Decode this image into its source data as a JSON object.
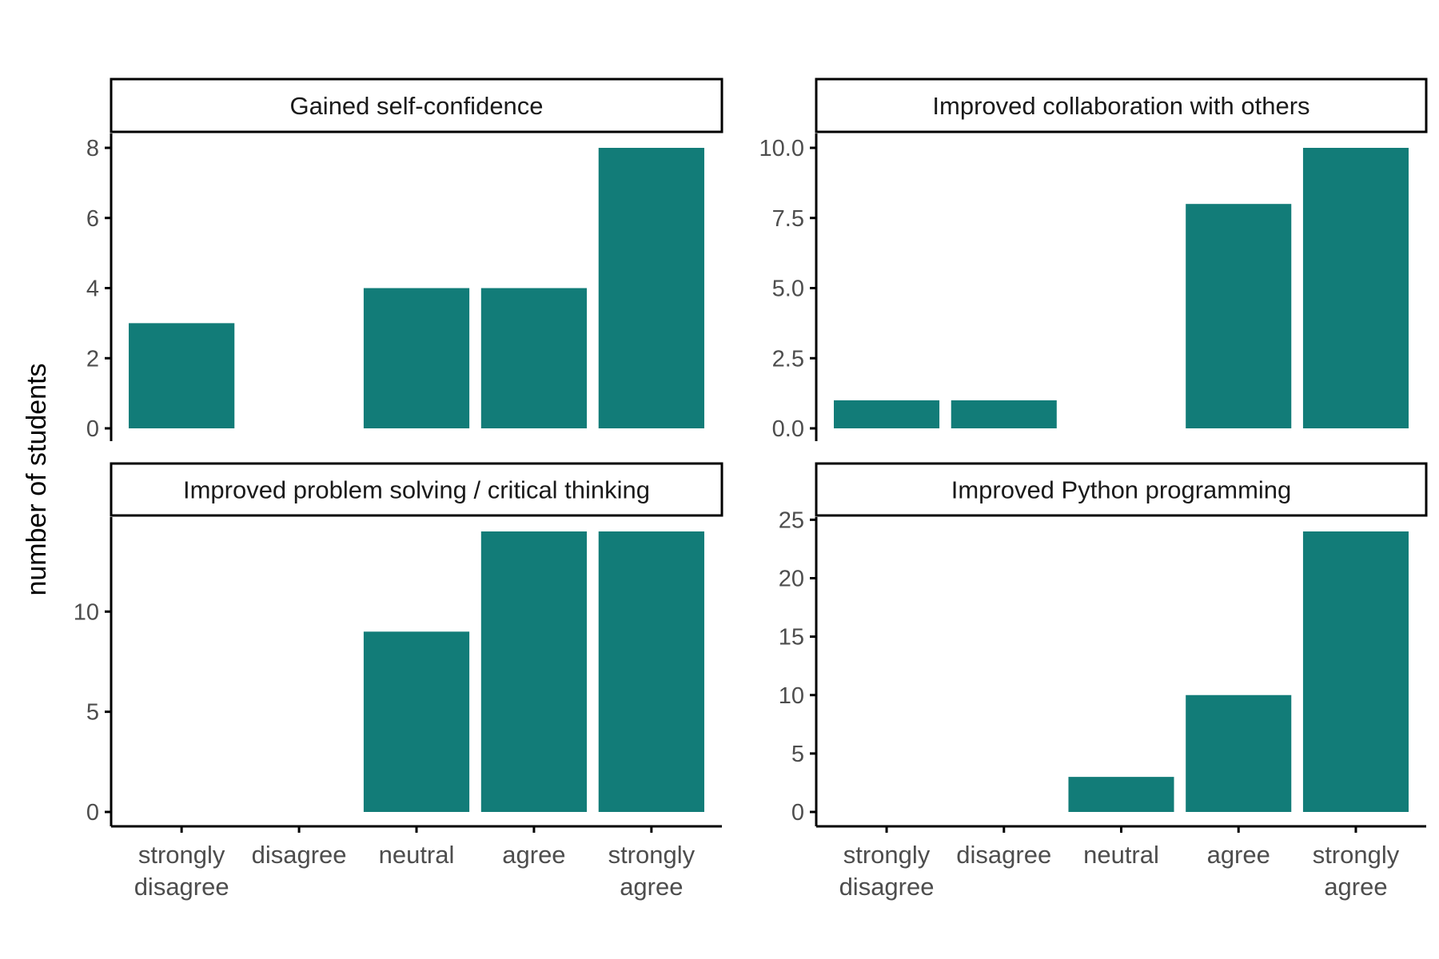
{
  "ylabel": "number of students",
  "colors": {
    "bar": "#127C78",
    "axis": "#000000",
    "tick_label": "#4D4D4D",
    "strip_fill": "#FFFFFF",
    "strip_border": "#000000"
  },
  "chart_data": [
    {
      "type": "bar",
      "title": "Gained self-confidence",
      "categories": [
        "strongly disagree",
        "disagree",
        "neutral",
        "agree",
        "strongly agree"
      ],
      "values": [
        3,
        0,
        4,
        4,
        8
      ],
      "ylim": [
        0,
        8
      ],
      "yticks": [
        0,
        2,
        4,
        6,
        8
      ],
      "ytick_labels": [
        "0",
        "2",
        "4",
        "6",
        "8"
      ]
    },
    {
      "type": "bar",
      "title": "Improved collaboration with others",
      "categories": [
        "strongly disagree",
        "disagree",
        "neutral",
        "agree",
        "strongly agree"
      ],
      "values": [
        1,
        1,
        0,
        8,
        10
      ],
      "ylim": [
        0,
        10
      ],
      "yticks": [
        0,
        2.5,
        5,
        7.5,
        10
      ],
      "ytick_labels": [
        "0.0",
        "2.5",
        "5.0",
        "7.5",
        "10.0"
      ]
    },
    {
      "type": "bar",
      "title": "Improved problem solving / critical thinking",
      "categories": [
        "strongly disagree",
        "disagree",
        "neutral",
        "agree",
        "strongly agree"
      ],
      "values": [
        0,
        0,
        9,
        14,
        14
      ],
      "ylim": [
        0,
        14
      ],
      "yticks": [
        0,
        5,
        10
      ],
      "ytick_labels": [
        "0",
        "5",
        "10"
      ],
      "x_tick_labels": [
        [
          "strongly",
          "disagree"
        ],
        [
          "disagree"
        ],
        [
          "neutral"
        ],
        [
          "agree"
        ],
        [
          "strongly",
          "agree"
        ]
      ]
    },
    {
      "type": "bar",
      "title": "Improved Python programming",
      "categories": [
        "strongly disagree",
        "disagree",
        "neutral",
        "agree",
        "strongly agree"
      ],
      "values": [
        0,
        0,
        3,
        10,
        24
      ],
      "ylim": [
        0,
        24
      ],
      "yticks": [
        0,
        5,
        10,
        15,
        20,
        25
      ],
      "ytick_labels": [
        "0",
        "5",
        "10",
        "15",
        "20",
        "25"
      ],
      "x_tick_labels": [
        [
          "strongly",
          "disagree"
        ],
        [
          "disagree"
        ],
        [
          "neutral"
        ],
        [
          "agree"
        ],
        [
          "strongly",
          "agree"
        ]
      ]
    }
  ]
}
